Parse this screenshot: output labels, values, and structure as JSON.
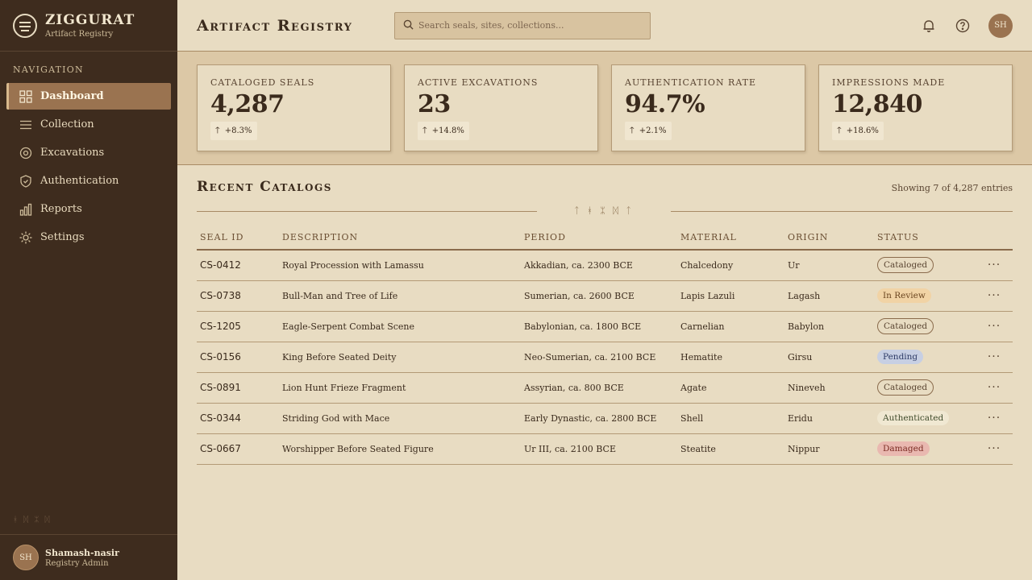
{
  "brand": {
    "name": "ZIGGURAT",
    "subtitle": "Artifact Registry"
  },
  "sidebar": {
    "heading": "NAVIGATION",
    "items": [
      {
        "label": "Dashboard",
        "icon": "grid-icon",
        "active": true
      },
      {
        "label": "Collection",
        "icon": "list-icon",
        "active": false
      },
      {
        "label": "Excavations",
        "icon": "target-icon",
        "active": false
      },
      {
        "label": "Authentication",
        "icon": "shield-check-icon",
        "active": false
      },
      {
        "label": "Reports",
        "icon": "bar-chart-icon",
        "active": false
      },
      {
        "label": "Settings",
        "icon": "gear-icon",
        "active": false
      }
    ],
    "user": {
      "initials": "SH",
      "name": "Shamash-nasir",
      "role": "Registry Admin"
    }
  },
  "header": {
    "title": "Artifact Registry",
    "search_placeholder": "Search seals, sites, collections...",
    "avatar_initials": "SH"
  },
  "stats": [
    {
      "label": "CATALOGED SEALS",
      "value": "4,287",
      "delta": "+8.3%"
    },
    {
      "label": "ACTIVE EXCAVATIONS",
      "value": "23",
      "delta": "+14.8%"
    },
    {
      "label": "AUTHENTICATION RATE",
      "value": "94.7%",
      "delta": "+2.1%"
    },
    {
      "label": "IMPRESSIONS MADE",
      "value": "12,840",
      "delta": "+18.6%"
    }
  ],
  "recent": {
    "title": "Recent Catalogs",
    "showing": "Showing 7 of 4,287 entries",
    "columns": [
      "SEAL ID",
      "DESCRIPTION",
      "PERIOD",
      "MATERIAL",
      "ORIGIN",
      "STATUS"
    ],
    "rows": [
      {
        "id": "CS-0412",
        "description": "Royal Procession with Lamassu",
        "period": "Akkadian, ca. 2300 BCE",
        "material": "Chalcedony",
        "origin": "Ur",
        "status": "Cataloged"
      },
      {
        "id": "CS-0738",
        "description": "Bull-Man and Tree of Life",
        "period": "Sumerian, ca. 2600 BCE",
        "material": "Lapis Lazuli",
        "origin": "Lagash",
        "status": "In Review"
      },
      {
        "id": "CS-1205",
        "description": "Eagle-Serpent Combat Scene",
        "period": "Babylonian, ca. 1800 BCE",
        "material": "Carnelian",
        "origin": "Babylon",
        "status": "Cataloged"
      },
      {
        "id": "CS-0156",
        "description": "King Before Seated Deity",
        "period": "Neo-Sumerian, ca. 2100 BCE",
        "material": "Hematite",
        "origin": "Girsu",
        "status": "Pending"
      },
      {
        "id": "CS-0891",
        "description": "Lion Hunt Frieze Fragment",
        "period": "Assyrian, ca. 800 BCE",
        "material": "Agate",
        "origin": "Nineveh",
        "status": "Cataloged"
      },
      {
        "id": "CS-0344",
        "description": "Striding God with Mace",
        "period": "Early Dynastic, ca. 2800 BCE",
        "material": "Shell",
        "origin": "Eridu",
        "status": "Authenticated"
      },
      {
        "id": "CS-0667",
        "description": "Worshipper Before Seated Figure",
        "period": "Ur III, ca. 2100 BCE",
        "material": "Steatite",
        "origin": "Nippur",
        "status": "Damaged"
      }
    ],
    "row_action": "···"
  },
  "colors": {
    "sidebar_bg": "#3e2c1e",
    "page_bg": "#e8dcc2",
    "accent": "#9a7350"
  }
}
